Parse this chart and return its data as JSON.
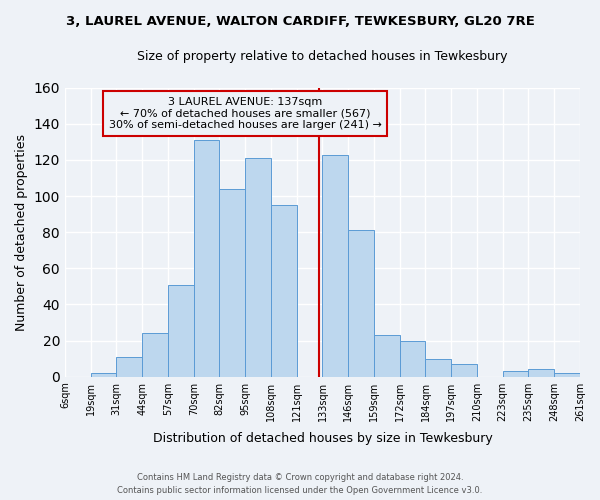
{
  "title": "3, LAUREL AVENUE, WALTON CARDIFF, TEWKESBURY, GL20 7RE",
  "subtitle": "Size of property relative to detached houses in Tewkesbury",
  "xlabel": "Distribution of detached houses by size in Tewkesbury",
  "ylabel": "Number of detached properties",
  "bin_labels": [
    "6sqm",
    "19sqm",
    "31sqm",
    "44sqm",
    "57sqm",
    "70sqm",
    "82sqm",
    "95sqm",
    "108sqm",
    "121sqm",
    "133sqm",
    "146sqm",
    "159sqm",
    "172sqm",
    "184sqm",
    "197sqm",
    "210sqm",
    "223sqm",
    "235sqm",
    "248sqm",
    "261sqm"
  ],
  "bar_heights": [
    0,
    2,
    11,
    24,
    51,
    131,
    104,
    121,
    95,
    0,
    123,
    81,
    23,
    20,
    10,
    7,
    0,
    3,
    4,
    2
  ],
  "bar_color": "#bdd7ee",
  "bar_edge_color": "#5b9bd5",
  "vline_index": 9.85,
  "vline_color": "#cc0000",
  "annotation_title": "3 LAUREL AVENUE: 137sqm",
  "annotation_line1": "← 70% of detached houses are smaller (567)",
  "annotation_line2": "30% of semi-detached houses are larger (241) →",
  "annotation_box_color": "#cc0000",
  "ylim": [
    0,
    160
  ],
  "yticks": [
    0,
    20,
    40,
    60,
    80,
    100,
    120,
    140,
    160
  ],
  "bg_color": "#eef2f7",
  "grid_color": "#ffffff",
  "footer1": "Contains HM Land Registry data © Crown copyright and database right 2024.",
  "footer2": "Contains public sector information licensed under the Open Government Licence v3.0."
}
